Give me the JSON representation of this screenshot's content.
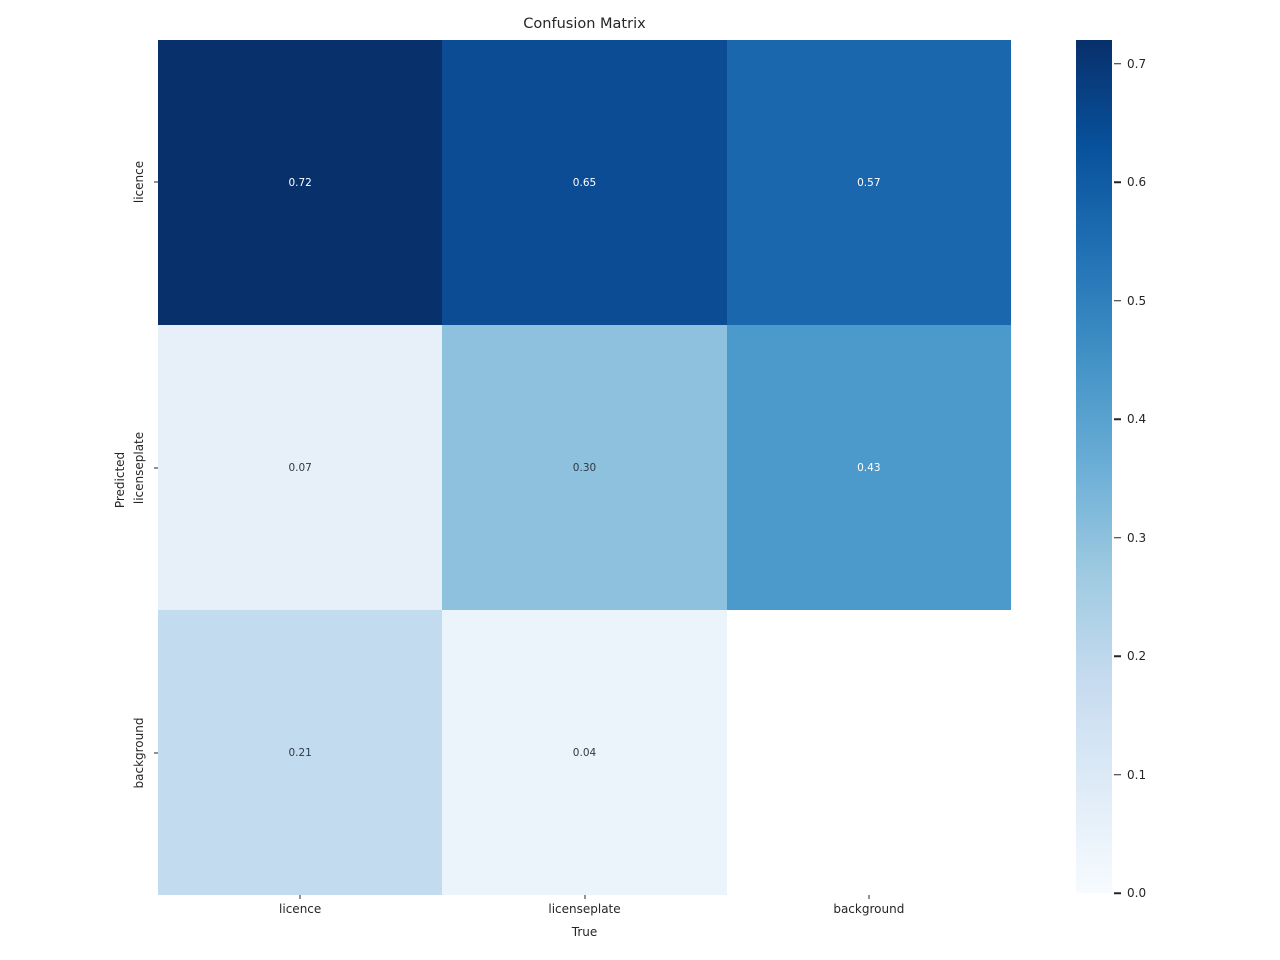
{
  "chart_data": {
    "type": "heatmap",
    "title": "Confusion Matrix",
    "xlabel": "True",
    "ylabel": "Predicted",
    "x_categories": [
      "licence",
      "licenseplate",
      "background"
    ],
    "y_categories": [
      "licence",
      "licenseplate",
      "background"
    ],
    "values": [
      [
        0.72,
        0.65,
        0.57
      ],
      [
        0.07,
        0.3,
        0.43
      ],
      [
        0.21,
        0.04,
        null
      ]
    ],
    "cells": [
      {
        "row": "licence",
        "col": "licence",
        "label": "0.72",
        "color": "#08306b",
        "text_color": "#ffffff"
      },
      {
        "row": "licence",
        "col": "licenseplate",
        "label": "0.65",
        "color": "#0c4c94",
        "text_color": "#ffffff"
      },
      {
        "row": "licence",
        "col": "background",
        "label": "0.57",
        "color": "#1b67ae",
        "text_color": "#ffffff"
      },
      {
        "row": "licenseplate",
        "col": "licence",
        "label": "0.07",
        "color": "#e7eff9",
        "text_color": "#2e3a46"
      },
      {
        "row": "licenseplate",
        "col": "licenseplate",
        "label": "0.30",
        "color": "#8ec1de",
        "text_color": "#2e3a46"
      },
      {
        "row": "licenseplate",
        "col": "background",
        "label": "0.43",
        "color": "#4c99cc",
        "text_color": "#ffffff"
      },
      {
        "row": "background",
        "col": "licence",
        "label": "0.21",
        "color": "#c2dbee",
        "text_color": "#2e3a46"
      },
      {
        "row": "background",
        "col": "licenseplate",
        "label": "0.04",
        "color": "#ecf4fb",
        "text_color": "#2e3a46"
      },
      {
        "row": "background",
        "col": "background",
        "label": "",
        "color": "#ffffff",
        "text_color": "#2e3a46"
      }
    ],
    "colormap": "Blues",
    "legend_position": "right",
    "grid": false,
    "colorbar": {
      "vmin": 0.0,
      "vmax": 0.72,
      "ticks": [
        {
          "label": "0.7",
          "value": 0.7
        },
        {
          "label": "0.6",
          "value": 0.6
        },
        {
          "label": "0.5",
          "value": 0.5
        },
        {
          "label": "0.4",
          "value": 0.4
        },
        {
          "label": "0.3",
          "value": 0.3
        },
        {
          "label": "0.2",
          "value": 0.2
        },
        {
          "label": "0.1",
          "value": 0.1
        },
        {
          "label": "0.0",
          "value": 0.0
        }
      ],
      "gradient": [
        "#f7fbff",
        "#deebf7",
        "#c6dbef",
        "#9ecae1",
        "#6baed6",
        "#4292c6",
        "#2171b5",
        "#08519c",
        "#08306b"
      ]
    }
  }
}
